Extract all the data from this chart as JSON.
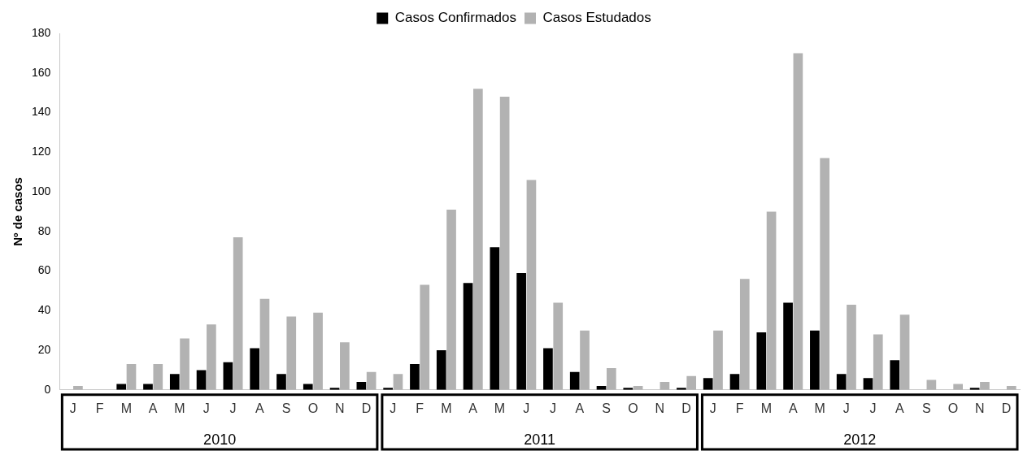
{
  "chart_data": {
    "type": "bar",
    "ylabel": "Nº de casos",
    "categories": [
      "J",
      "F",
      "M",
      "A",
      "M",
      "J",
      "J",
      "A",
      "S",
      "O",
      "N",
      "D",
      "J",
      "F",
      "M",
      "A",
      "M",
      "J",
      "J",
      "A",
      "S",
      "O",
      "N",
      "D",
      "J",
      "F",
      "M",
      "A",
      "M",
      "J",
      "J",
      "A",
      "S",
      "O",
      "N",
      "D"
    ],
    "series": [
      {
        "name": "Casos Confirmados",
        "color": "#000000",
        "values": [
          0,
          0,
          3,
          3,
          8,
          10,
          14,
          21,
          8,
          3,
          1,
          4,
          1,
          13,
          20,
          54,
          72,
          59,
          21,
          9,
          2,
          1,
          0,
          1,
          6,
          8,
          29,
          44,
          30,
          8,
          6,
          15,
          0,
          0,
          1,
          0
        ]
      },
      {
        "name": "Casos Estudados",
        "color": "#b2b2b2",
        "values": [
          2,
          0,
          13,
          13,
          26,
          33,
          77,
          46,
          37,
          39,
          24,
          9,
          8,
          53,
          91,
          152,
          148,
          106,
          44,
          30,
          11,
          2,
          4,
          7,
          30,
          56,
          90,
          170,
          117,
          43,
          28,
          38,
          5,
          3,
          4,
          2
        ]
      }
    ],
    "annotations": [
      "2010",
      "2011",
      "2012"
    ],
    "ylim": [
      0,
      180
    ],
    "yticks": [
      0,
      20,
      40,
      60,
      80,
      100,
      120,
      140,
      160,
      180
    ],
    "grid": false,
    "legend": "top"
  }
}
